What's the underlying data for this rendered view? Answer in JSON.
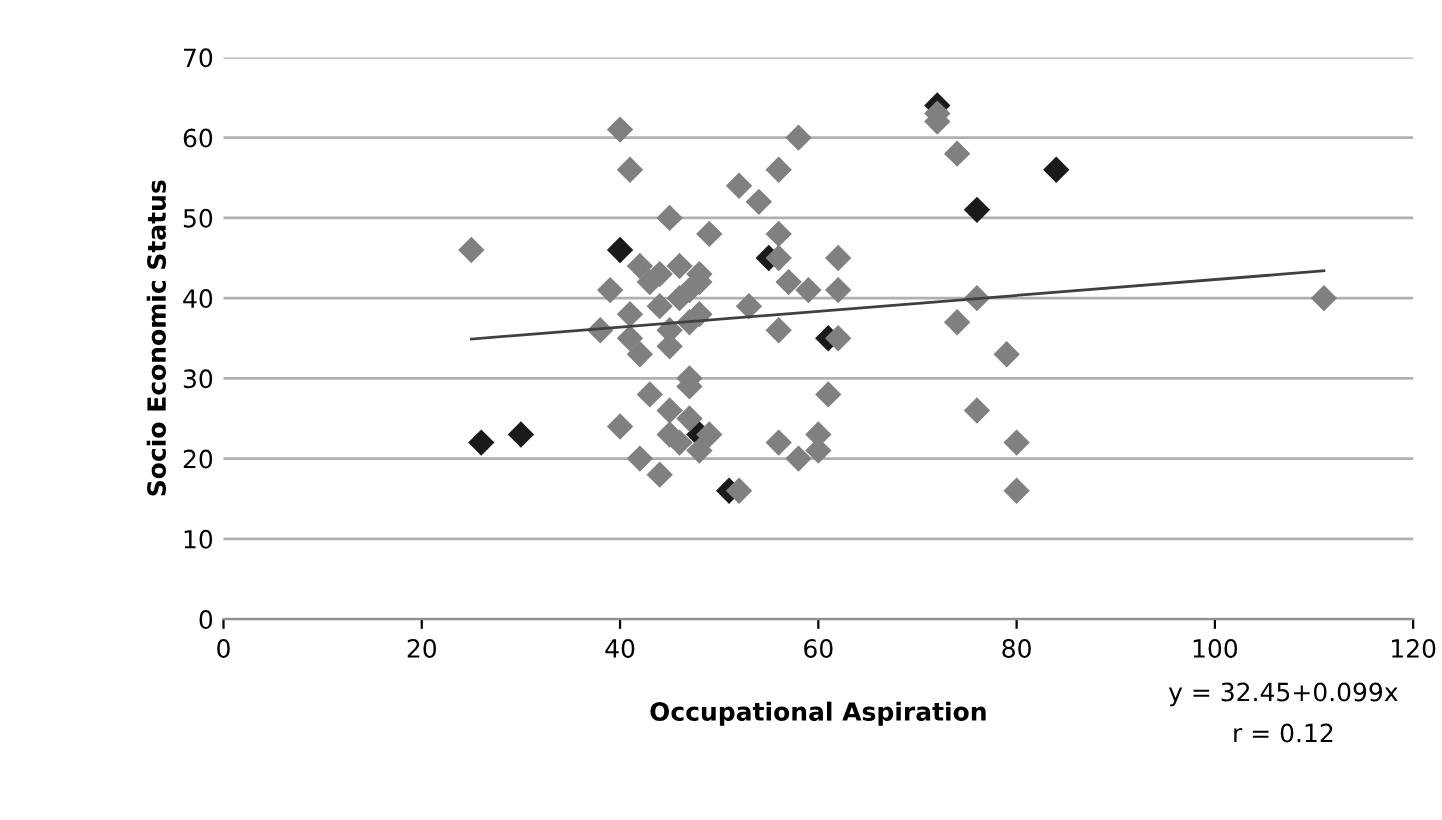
{
  "chart_data": {
    "type": "scatter",
    "xlabel": "Occupational Aspiration",
    "ylabel": "Socio Economic Status",
    "xlim": [
      0,
      120
    ],
    "xticks": [
      0,
      20,
      40,
      60,
      80,
      100,
      120
    ],
    "ylim": [
      0,
      70
    ],
    "yticks": [
      0,
      10,
      20,
      30,
      40,
      50,
      60,
      70
    ],
    "grid": "y",
    "annotations": [
      "y = 32.45+0.099x",
      "r = 0.12"
    ],
    "series": [
      {
        "color": "#1a1a1a",
        "marker": "diamond",
        "x": [
          26,
          30,
          76,
          84,
          40,
          48,
          51,
          55,
          61,
          72
        ],
        "values": [
          22,
          23,
          51,
          56,
          46,
          23,
          16,
          45,
          35,
          64
        ]
      },
      {
        "color": "#808080",
        "marker": "diamond",
        "x": [
          25,
          39,
          38,
          40,
          41,
          40,
          42,
          44,
          43,
          41,
          41,
          42,
          42,
          43,
          44,
          44,
          45,
          45,
          45,
          45,
          45,
          46,
          46,
          46,
          47,
          47,
          47,
          47,
          47,
          48,
          48,
          48,
          49,
          48,
          52,
          54,
          53,
          56,
          56,
          56,
          56,
          56,
          57,
          58,
          58,
          59,
          60,
          60,
          61,
          62,
          62,
          62,
          72,
          72,
          74,
          74,
          76,
          76,
          79,
          80,
          80,
          111,
          52,
          49
        ],
        "values": [
          46,
          41,
          36,
          61,
          56,
          24,
          20,
          18,
          28,
          38,
          35,
          33,
          44,
          42,
          43,
          39,
          50,
          36,
          34,
          26,
          23,
          44,
          40,
          22,
          41,
          37,
          30,
          29,
          25,
          42,
          21,
          38,
          48,
          43,
          54,
          52,
          39,
          56,
          48,
          45,
          36,
          22,
          42,
          60,
          20,
          41,
          23,
          21,
          28,
          45,
          41,
          35,
          63,
          62,
          58,
          37,
          40,
          26,
          33,
          22,
          16,
          40,
          16,
          23
        ]
      },
      {
        "type": "line",
        "color": "#404040",
        "marker": "none",
        "x": [
          25,
          111
        ],
        "values": [
          34.9,
          43.4
        ]
      }
    ]
  }
}
